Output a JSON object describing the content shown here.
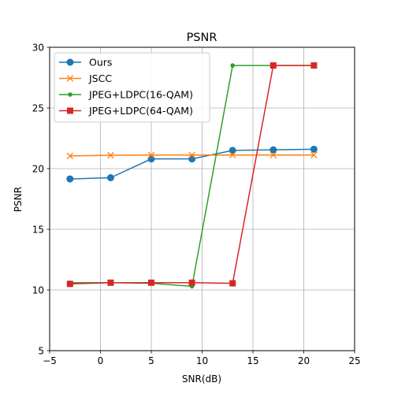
{
  "chart_data": {
    "type": "line",
    "title": "PSNR",
    "xlabel": "SNR(dB)",
    "ylabel": "PSNR",
    "xlim": [
      -5,
      25
    ],
    "ylim": [
      5,
      30
    ],
    "xticks": [
      -5,
      0,
      5,
      10,
      15,
      20,
      25
    ],
    "yticks": [
      5,
      10,
      15,
      20,
      25,
      30
    ],
    "grid": true,
    "legend_position": "top-left",
    "series": [
      {
        "name": "Ours",
        "color": "#1f77b4",
        "marker": "circle",
        "x": [
          -3,
          1,
          5,
          9,
          13,
          17,
          21
        ],
        "y": [
          19.15,
          19.25,
          20.8,
          20.8,
          21.5,
          21.55,
          21.6
        ]
      },
      {
        "name": "JSCC",
        "color": "#ff7f0e",
        "marker": "x",
        "x": [
          -3,
          1,
          5,
          9,
          13,
          17,
          21
        ],
        "y": [
          21.05,
          21.1,
          21.12,
          21.12,
          21.12,
          21.12,
          21.12
        ]
      },
      {
        "name": "JPEG+LDPC(16-QAM)",
        "color": "#2ca02c",
        "marker": "small-circle",
        "x": [
          -3,
          1,
          5,
          9,
          13,
          17,
          21
        ],
        "y": [
          10.6,
          10.6,
          10.55,
          10.3,
          28.5,
          28.5,
          28.5
        ]
      },
      {
        "name": "JPEG+LDPC(64-QAM)",
        "color": "#d62728",
        "marker": "square",
        "x": [
          -3,
          1,
          5,
          9,
          13,
          17,
          21
        ],
        "y": [
          10.5,
          10.6,
          10.6,
          10.6,
          10.55,
          28.5,
          28.5
        ]
      }
    ]
  }
}
